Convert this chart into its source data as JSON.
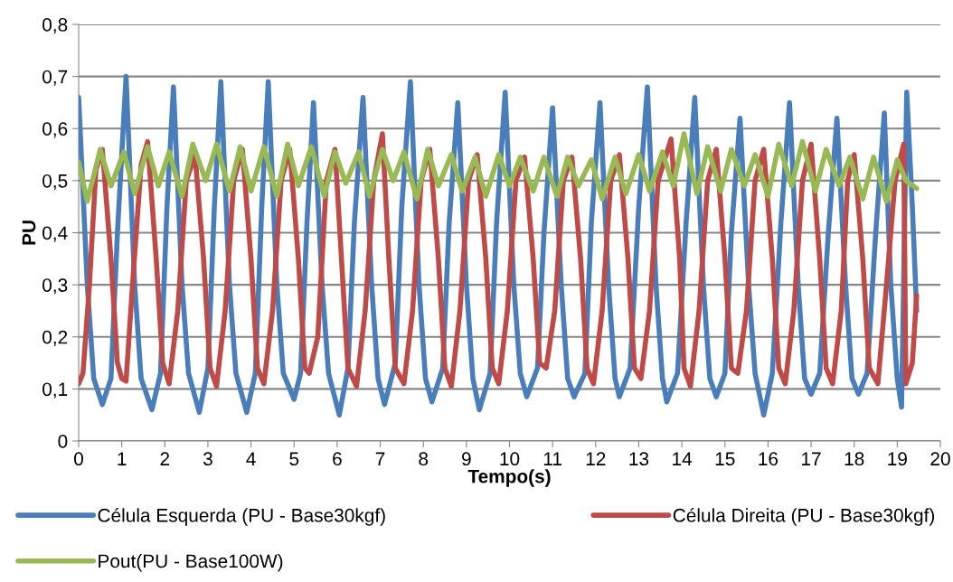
{
  "chart_data": {
    "type": "line",
    "xlabel": "Tempo(s)",
    "ylabel": "PU",
    "xlim": [
      0,
      20
    ],
    "xticks": [
      0,
      1,
      2,
      3,
      4,
      5,
      6,
      7,
      8,
      9,
      10,
      11,
      12,
      13,
      14,
      15,
      16,
      17,
      18,
      19,
      20
    ],
    "ylim": [
      0,
      0.8
    ],
    "yticks": [
      0,
      {
        "value": 0.1,
        "label": "0,1"
      },
      {
        "value": 0.2,
        "label": "0,2"
      },
      {
        "value": 0.3,
        "label": "0,3"
      },
      {
        "value": 0.4,
        "label": "0,4"
      },
      {
        "value": 0.5,
        "label": "0,5"
      },
      {
        "value": 0.6,
        "label": "0,6"
      },
      {
        "value": 0.7,
        "label": "0,7"
      },
      {
        "value": 0.8,
        "label": "0,8"
      }
    ],
    "grid": "y",
    "legend": "bottom",
    "marker": "none",
    "line_style": "solid",
    "series": [
      {
        "name": "Célula Esquerda (PU - Base30kgf)",
        "color": "#4a7ebb",
        "x": [
          0,
          0.2,
          0.35,
          0.55,
          0.75,
          0.9,
          1.1,
          1.3,
          1.45,
          1.7,
          1.9,
          2.05,
          2.2,
          2.4,
          2.55,
          2.8,
          3.0,
          3.15,
          3.3,
          3.5,
          3.65,
          3.9,
          4.1,
          4.25,
          4.4,
          4.6,
          4.75,
          5.0,
          5.15,
          5.3,
          5.45,
          5.65,
          5.8,
          6.05,
          6.25,
          6.4,
          6.6,
          6.8,
          6.95,
          7.1,
          7.35,
          7.5,
          7.7,
          7.9,
          8.05,
          8.2,
          8.45,
          8.6,
          8.8,
          9.0,
          9.15,
          9.3,
          9.55,
          9.7,
          9.9,
          10.1,
          10.25,
          10.4,
          10.65,
          10.8,
          11.0,
          11.2,
          11.35,
          11.5,
          11.75,
          11.9,
          12.1,
          12.3,
          12.45,
          12.55,
          12.8,
          13.0,
          13.2,
          13.4,
          13.55,
          13.65,
          13.9,
          14.1,
          14.3,
          14.5,
          14.65,
          14.8,
          15.0,
          15.15,
          15.35,
          15.55,
          15.7,
          15.9,
          16.1,
          16.3,
          16.5,
          16.7,
          16.85,
          17.0,
          17.2,
          17.4,
          17.6,
          17.8,
          17.95,
          18.1,
          18.3,
          18.5,
          18.7,
          18.85,
          19.0,
          19.1,
          19.22,
          19.35,
          19.45
        ],
        "values": [
          0.66,
          0.3,
          0.12,
          0.07,
          0.12,
          0.4,
          0.7,
          0.3,
          0.12,
          0.06,
          0.13,
          0.45,
          0.68,
          0.3,
          0.13,
          0.055,
          0.14,
          0.45,
          0.69,
          0.3,
          0.13,
          0.055,
          0.13,
          0.45,
          0.69,
          0.3,
          0.13,
          0.08,
          0.13,
          0.42,
          0.65,
          0.3,
          0.13,
          0.05,
          0.14,
          0.42,
          0.66,
          0.3,
          0.12,
          0.07,
          0.15,
          0.45,
          0.69,
          0.3,
          0.12,
          0.075,
          0.14,
          0.42,
          0.65,
          0.3,
          0.12,
          0.06,
          0.13,
          0.42,
          0.67,
          0.3,
          0.13,
          0.085,
          0.14,
          0.4,
          0.64,
          0.3,
          0.12,
          0.085,
          0.13,
          0.42,
          0.65,
          0.3,
          0.12,
          0.085,
          0.14,
          0.45,
          0.68,
          0.3,
          0.12,
          0.075,
          0.13,
          0.42,
          0.66,
          0.3,
          0.12,
          0.085,
          0.13,
          0.4,
          0.62,
          0.3,
          0.13,
          0.05,
          0.13,
          0.42,
          0.65,
          0.3,
          0.12,
          0.09,
          0.13,
          0.4,
          0.62,
          0.3,
          0.12,
          0.09,
          0.13,
          0.4,
          0.63,
          0.3,
          0.12,
          0.065,
          0.67,
          0.45,
          0.25
        ]
      },
      {
        "name": "Célula Direita (PU - Base30kgf)",
        "color": "#be4b48",
        "x": [
          0,
          0.1,
          0.25,
          0.4,
          0.55,
          0.75,
          0.9,
          1.0,
          1.1,
          1.25,
          1.45,
          1.6,
          1.8,
          1.95,
          2.1,
          2.3,
          2.5,
          2.7,
          2.9,
          3.05,
          3.2,
          3.4,
          3.6,
          3.8,
          4.0,
          4.15,
          4.3,
          4.5,
          4.7,
          4.9,
          5.1,
          5.25,
          5.35,
          5.55,
          5.75,
          5.95,
          6.1,
          6.25,
          6.45,
          6.65,
          6.85,
          7.05,
          7.2,
          7.35,
          7.55,
          7.75,
          7.95,
          8.15,
          8.35,
          8.5,
          8.65,
          8.85,
          9.05,
          9.25,
          9.45,
          9.6,
          9.75,
          9.95,
          10.15,
          10.35,
          10.55,
          10.7,
          10.85,
          11.05,
          11.25,
          11.45,
          11.65,
          11.8,
          11.95,
          12.15,
          12.35,
          12.55,
          12.75,
          12.9,
          13.05,
          13.25,
          13.45,
          13.75,
          13.95,
          14.05,
          14.2,
          14.4,
          14.6,
          14.8,
          15.0,
          15.15,
          15.3,
          15.5,
          15.7,
          15.9,
          16.1,
          16.25,
          16.4,
          16.6,
          16.8,
          17.0,
          17.2,
          17.35,
          17.5,
          17.7,
          17.85,
          18.0,
          18.2,
          18.35,
          18.55,
          18.75,
          18.95,
          19.15,
          19.2,
          19.35,
          19.45
        ],
        "values": [
          0.11,
          0.13,
          0.3,
          0.52,
          0.56,
          0.35,
          0.15,
          0.12,
          0.115,
          0.3,
          0.53,
          0.575,
          0.35,
          0.15,
          0.11,
          0.25,
          0.5,
          0.55,
          0.35,
          0.14,
          0.105,
          0.25,
          0.5,
          0.56,
          0.35,
          0.14,
          0.11,
          0.25,
          0.5,
          0.56,
          0.35,
          0.14,
          0.13,
          0.2,
          0.5,
          0.56,
          0.35,
          0.14,
          0.105,
          0.25,
          0.5,
          0.59,
          0.35,
          0.14,
          0.11,
          0.25,
          0.5,
          0.56,
          0.35,
          0.14,
          0.105,
          0.25,
          0.5,
          0.55,
          0.35,
          0.14,
          0.11,
          0.25,
          0.5,
          0.545,
          0.35,
          0.15,
          0.14,
          0.25,
          0.5,
          0.545,
          0.35,
          0.14,
          0.11,
          0.25,
          0.5,
          0.55,
          0.35,
          0.14,
          0.12,
          0.25,
          0.5,
          0.58,
          0.35,
          0.14,
          0.105,
          0.25,
          0.5,
          0.56,
          0.35,
          0.14,
          0.13,
          0.25,
          0.5,
          0.56,
          0.35,
          0.14,
          0.11,
          0.25,
          0.5,
          0.57,
          0.35,
          0.14,
          0.11,
          0.25,
          0.5,
          0.55,
          0.35,
          0.14,
          0.11,
          0.3,
          0.5,
          0.57,
          0.11,
          0.15,
          0.28
        ]
      },
      {
        "name": "Pout(PU - Base100W)",
        "color": "#98b954",
        "x": [
          0,
          0.2,
          0.5,
          0.75,
          1.05,
          1.3,
          1.6,
          1.85,
          2.1,
          2.4,
          2.65,
          2.95,
          3.2,
          3.5,
          3.75,
          4.0,
          4.3,
          4.6,
          4.85,
          5.1,
          5.4,
          5.7,
          5.95,
          6.2,
          6.5,
          6.75,
          7.05,
          7.3,
          7.55,
          7.85,
          8.1,
          8.35,
          8.65,
          8.9,
          9.2,
          9.45,
          9.75,
          10.0,
          10.25,
          10.55,
          10.8,
          11.1,
          11.35,
          11.6,
          11.9,
          12.15,
          12.45,
          12.7,
          13.0,
          13.25,
          13.55,
          13.8,
          14.05,
          14.35,
          14.6,
          14.9,
          15.15,
          15.45,
          15.7,
          16.0,
          16.25,
          16.55,
          16.8,
          17.1,
          17.35,
          17.65,
          17.9,
          18.2,
          18.45,
          18.75,
          19.0,
          19.2,
          19.45
        ],
        "values": [
          0.535,
          0.46,
          0.56,
          0.49,
          0.555,
          0.475,
          0.565,
          0.49,
          0.555,
          0.47,
          0.57,
          0.5,
          0.57,
          0.48,
          0.565,
          0.48,
          0.565,
          0.47,
          0.57,
          0.49,
          0.565,
          0.47,
          0.555,
          0.495,
          0.555,
          0.47,
          0.56,
          0.5,
          0.555,
          0.465,
          0.56,
          0.49,
          0.55,
          0.48,
          0.545,
          0.47,
          0.55,
          0.49,
          0.545,
          0.48,
          0.545,
          0.47,
          0.545,
          0.49,
          0.54,
          0.465,
          0.545,
          0.475,
          0.55,
          0.48,
          0.555,
          0.49,
          0.59,
          0.475,
          0.565,
          0.48,
          0.56,
          0.49,
          0.55,
          0.47,
          0.57,
          0.49,
          0.575,
          0.48,
          0.56,
          0.49,
          0.545,
          0.465,
          0.545,
          0.46,
          0.54,
          0.5,
          0.485
        ]
      }
    ]
  }
}
